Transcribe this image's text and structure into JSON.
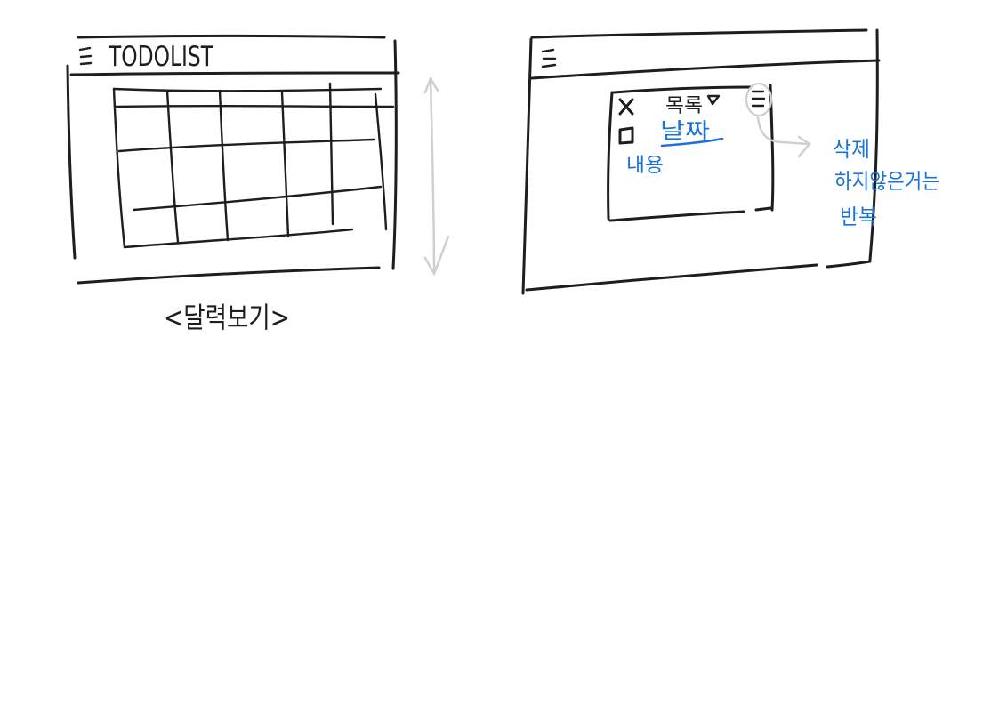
{
  "calendar_sketch": {
    "title": "TODOLIST",
    "caption": "<달력보기>",
    "menu_icon": "hamburger-icon",
    "scroll_indicator": "double-arrow-icon"
  },
  "detail_sketch": {
    "menu_icon": "hamburger-icon",
    "popup": {
      "close_icon": "x-icon",
      "dropdown_label": "목록",
      "dropdown_icon": "triangle-down-icon",
      "item_menu_icon": "hamburger-icon",
      "checkbox_icon": "square-icon",
      "date_label": "날짜",
      "content_label": "내용"
    },
    "annotation": {
      "line1": "삭제",
      "line2": "하지않은거는",
      "line3": "반복"
    }
  },
  "colors": {
    "ink": "#1e1e1e",
    "accent_blue": "#1a73d9",
    "guide_gray": "#d0d0d0"
  }
}
